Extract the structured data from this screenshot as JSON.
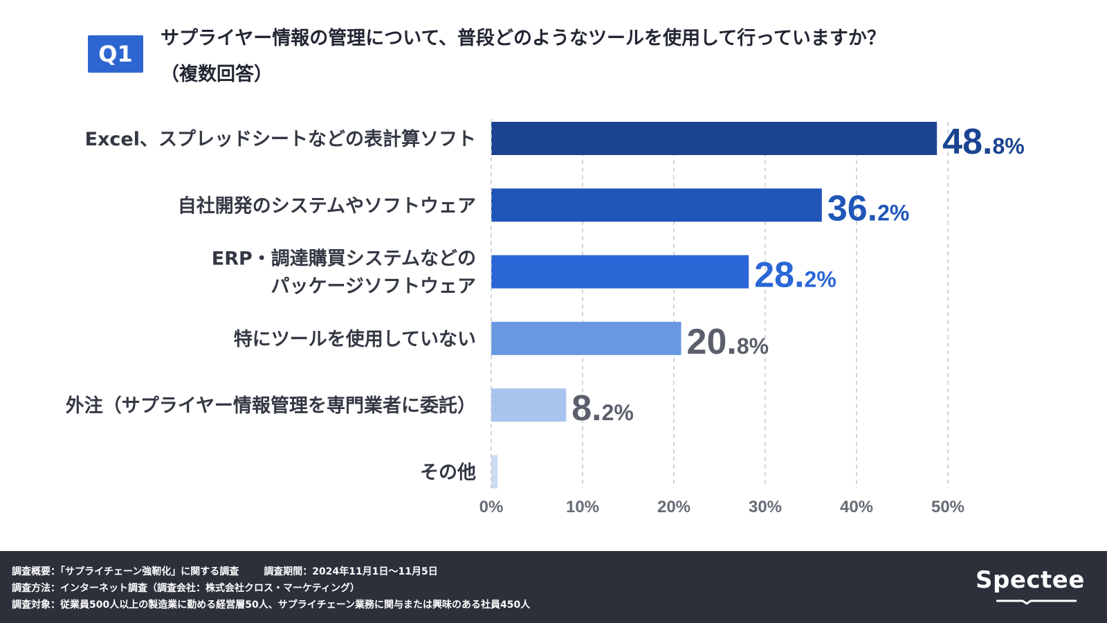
{
  "header": {
    "badge": "Q1",
    "title_line1": "サプライヤー情報の管理について、普段どのようなツールを使用して行っていますか？",
    "title_line2": "（複数回答）"
  },
  "colors": {
    "badge": "#2e66d1",
    "bars": [
      "#1a4491",
      "#1f56b8",
      "#2a66d6",
      "#6a98e0",
      "#a9c4ee",
      "#cddcf5"
    ],
    "value_labels": [
      "#1a4491",
      "#1f56b8",
      "#2a66d6",
      "#5a5f6b",
      "#5a5f6b",
      "#5a5f6b"
    ],
    "axis_text": "#666b75",
    "category_text": "#333843",
    "footer_bg": "#2b303b"
  },
  "chart_data": {
    "type": "bar",
    "orientation": "horizontal",
    "categories": [
      [
        "Excel、スプレッドシートなどの表計算ソフト"
      ],
      [
        "自社開発のシステムやソフトウェア"
      ],
      [
        "ERP・調達購買システムなどの",
        "パッケージソフトウェア"
      ],
      [
        "特にツールを使用していない"
      ],
      [
        "外注（サプライヤー情報管理を専門業者に委託）"
      ],
      [
        "その他"
      ]
    ],
    "values": [
      48.8,
      36.2,
      28.2,
      20.8,
      8.2,
      0.7
    ],
    "value_labels": [
      {
        "int": "48.",
        "dec": "8%"
      },
      {
        "int": "36.",
        "dec": "2%"
      },
      {
        "int": "28.",
        "dec": "2%"
      },
      {
        "int": "20.",
        "dec": "8%"
      },
      {
        "int": "8.",
        "dec": "2%"
      },
      null
    ],
    "xlim": [
      0,
      50
    ],
    "xticks": [
      0,
      10,
      20,
      30,
      40,
      50
    ],
    "xtick_labels": [
      "0%",
      "10%",
      "20%",
      "30%",
      "40%",
      "50%"
    ],
    "grid": true
  },
  "footer": {
    "line1_a": "調査概要：「サプライチェーン強靭化」に関する調査",
    "line1_b": "調査期間：2024年11月1日〜11月5日",
    "line2": "調査方法：インターネット調査（調査会社：株式会社クロス・マーケティング）",
    "line3": "調査対象：従業員500人以上の製造業に勤める経営層50人、サプライチェーン業務に関与または興味のある社員450人",
    "logo": "Spectee"
  }
}
